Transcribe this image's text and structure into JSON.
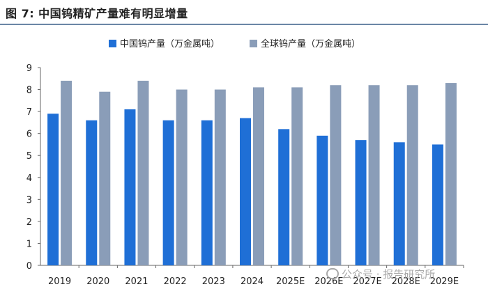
{
  "figure_title": "图 7:  中国钨精矿产量难有明显增量",
  "watermark_text": "公众号 · 报告研究所",
  "chart_data": {
    "type": "bar",
    "title": "",
    "xlabel": "",
    "ylabel": "",
    "ylim": [
      0,
      9
    ],
    "yticks": [
      0,
      1,
      2,
      3,
      4,
      5,
      6,
      7,
      8,
      9
    ],
    "grid": false,
    "legend_position": "top",
    "categories": [
      "2019",
      "2020",
      "2021",
      "2022",
      "2023",
      "2024",
      "2025E",
      "2026E",
      "2027E",
      "2028E",
      "2029E"
    ],
    "series": [
      {
        "name": "中国钨产量（万金属吨）",
        "color": "#1f6fd6",
        "values": [
          6.9,
          6.6,
          7.1,
          6.6,
          6.6,
          6.7,
          6.2,
          5.9,
          5.7,
          5.6,
          5.5
        ]
      },
      {
        "name": "全球钨产量（万金属吨）",
        "color": "#8a9db8",
        "values": [
          8.4,
          7.9,
          8.4,
          8.0,
          8.0,
          8.1,
          8.1,
          8.2,
          8.2,
          8.2,
          8.3
        ]
      }
    ]
  }
}
